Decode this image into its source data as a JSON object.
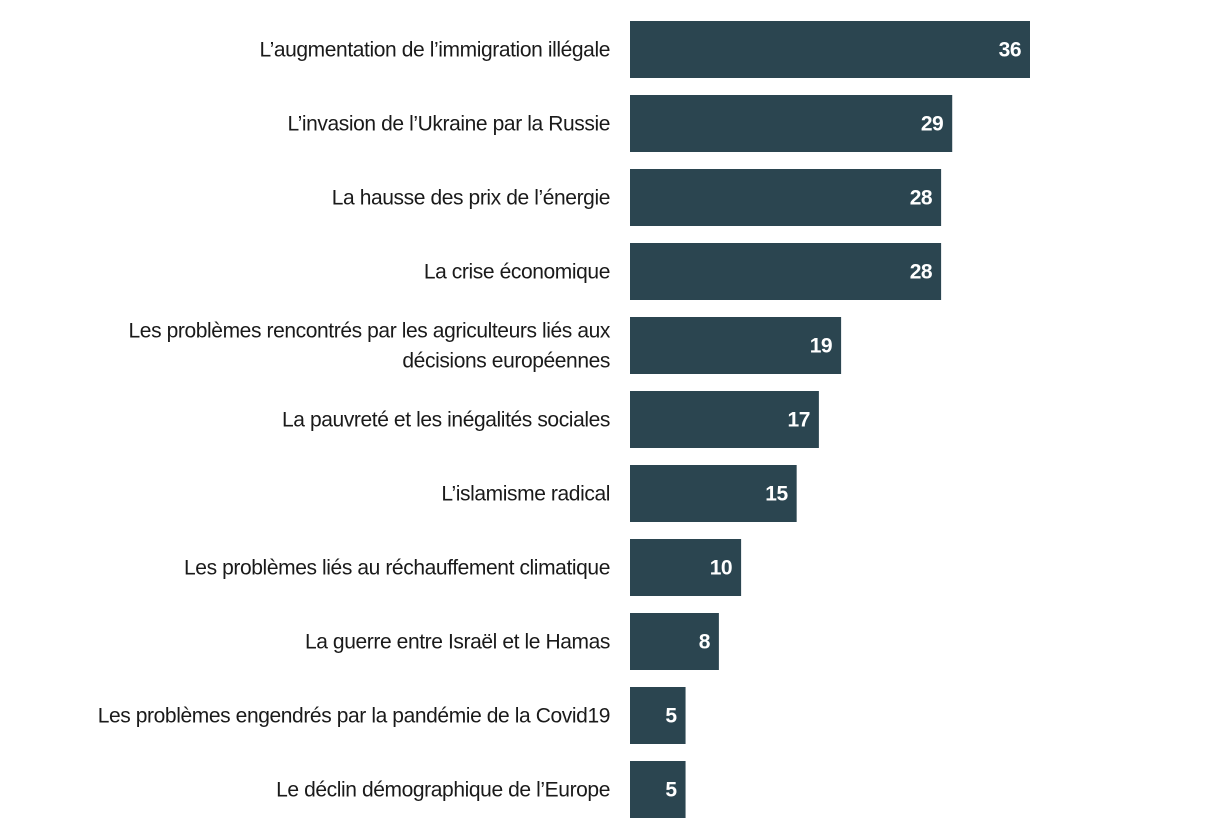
{
  "chart_data": {
    "type": "bar",
    "orientation": "horizontal",
    "title": "",
    "xlabel": "",
    "ylabel": "",
    "xlim": [
      0,
      36
    ],
    "grid": false,
    "bar_color": "#2b4550",
    "value_label_color": "#ffffff",
    "categories": [
      [
        "L’augmentation de l’immigration illégale"
      ],
      [
        "L’invasion de l’Ukraine par la Russie"
      ],
      [
        "La hausse des prix de l’énergie"
      ],
      [
        "La crise économique"
      ],
      [
        "Les problèmes rencontrés par les agriculteurs liés aux",
        "décisions européennes"
      ],
      [
        "La pauvreté et les inégalités sociales"
      ],
      [
        "L’islamisme radical"
      ],
      [
        "Les problèmes liés au réchauffement climatique"
      ],
      [
        "La guerre entre Israël et le Hamas"
      ],
      [
        "Les problèmes engendrés par la pandémie de la Covid19"
      ],
      [
        "Le déclin démographique de l’Europe"
      ]
    ],
    "values": [
      36,
      29,
      28,
      28,
      19,
      17,
      15,
      10,
      8,
      5,
      5
    ]
  }
}
